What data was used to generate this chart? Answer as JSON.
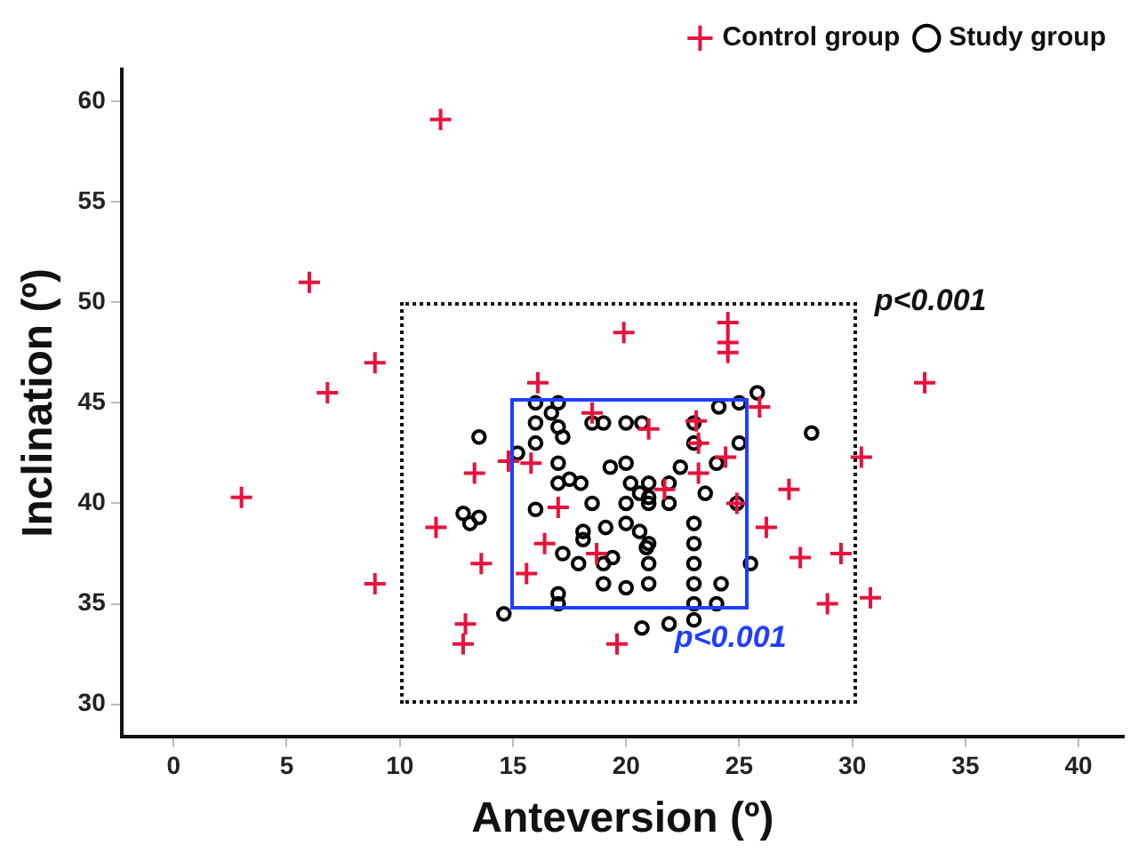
{
  "chart_data": {
    "type": "scatter",
    "xlabel": "Anteversion (º)",
    "ylabel": "Inclination (º)",
    "xlim": [
      -2.3,
      42
    ],
    "ylim": [
      28.4,
      61.6
    ],
    "xticks": [
      0,
      5,
      10,
      15,
      20,
      25,
      30,
      35,
      40
    ],
    "yticks": [
      30,
      35,
      40,
      45,
      50,
      55,
      60
    ],
    "grid": false,
    "legend": "top right",
    "annotations": [
      "p<0.001",
      "p<0.001"
    ],
    "series": [
      {
        "name": "Control group",
        "color": "#e8123c",
        "marker": "cross",
        "x": [
          11.8,
          6.0,
          8.9,
          6.8,
          3.0,
          8.9,
          16.1,
          18.5,
          13.3,
          14.8,
          15.8,
          17.0,
          11.6,
          16.4,
          18.7,
          13.6,
          15.6,
          12.9,
          12.8,
          19.6,
          19.9,
          24.5,
          24.5,
          24.5,
          25.9,
          23.1,
          21.0,
          23.2,
          24.4,
          23.2,
          27.2,
          21.7,
          24.9,
          26.2,
          27.7,
          33.2,
          30.4,
          29.5,
          28.9,
          30.8
        ],
        "values": [
          59.1,
          51.0,
          47.0,
          45.5,
          40.3,
          36.0,
          46.0,
          44.5,
          41.5,
          42.1,
          42.0,
          39.8,
          38.8,
          38.0,
          37.5,
          37.0,
          36.5,
          34.0,
          33.0,
          33.0,
          48.5,
          49.0,
          48.0,
          47.5,
          44.8,
          44.1,
          43.7,
          43.0,
          42.3,
          41.5,
          40.7,
          40.7,
          40.0,
          38.8,
          37.3,
          46.0,
          42.3,
          37.5,
          35.0,
          35.3
        ]
      },
      {
        "name": "Study group",
        "color": "#000000",
        "marker": "circle",
        "x": [
          16.0,
          17.0,
          16.7,
          25.8,
          25.0,
          24.1,
          16.0,
          17.0,
          17.2,
          18.5,
          19.0,
          20.0,
          20.7,
          23.0,
          23.0,
          25.0,
          16.0,
          15.2,
          13.5,
          17.0,
          19.3,
          20.0,
          22.4,
          24.0,
          17.0,
          17.5,
          18.0,
          20.2,
          21.0,
          21.9,
          20.6,
          21.0,
          21.0,
          23.5,
          24.9,
          18.5,
          20.0,
          21.9,
          16.0,
          12.8,
          13.1,
          13.5,
          18.1,
          18.1,
          19.1,
          20.0,
          20.6,
          21.0,
          20.9,
          23.0,
          23.0,
          17.2,
          17.9,
          19.0,
          19.4,
          21.0,
          23.0,
          25.5,
          19.0,
          20.0,
          21.0,
          23.0,
          24.2,
          17.0,
          17.0,
          23.0,
          24.0,
          14.6,
          23.0,
          21.9,
          20.7,
          28.2
        ],
        "values": [
          45.0,
          45.0,
          44.5,
          45.5,
          45.0,
          44.8,
          44.0,
          43.8,
          43.3,
          44.0,
          44.0,
          44.0,
          44.0,
          44.0,
          43.0,
          43.0,
          43.0,
          42.5,
          43.3,
          42.0,
          41.8,
          42.0,
          41.8,
          42.0,
          41.0,
          41.2,
          41.0,
          41.0,
          41.0,
          41.0,
          40.5,
          40.3,
          40.0,
          40.5,
          40.0,
          40.0,
          40.0,
          40.0,
          39.7,
          39.5,
          39.0,
          39.3,
          38.6,
          38.2,
          38.8,
          39.0,
          38.6,
          38.0,
          37.8,
          39.0,
          38.0,
          37.5,
          37.0,
          37.0,
          37.3,
          37.0,
          37.0,
          37.0,
          36.0,
          35.8,
          36.0,
          36.0,
          36.0,
          35.5,
          35.0,
          35.0,
          35.0,
          34.5,
          34.2,
          34.0,
          33.8,
          43.5
        ]
      }
    ]
  }
}
